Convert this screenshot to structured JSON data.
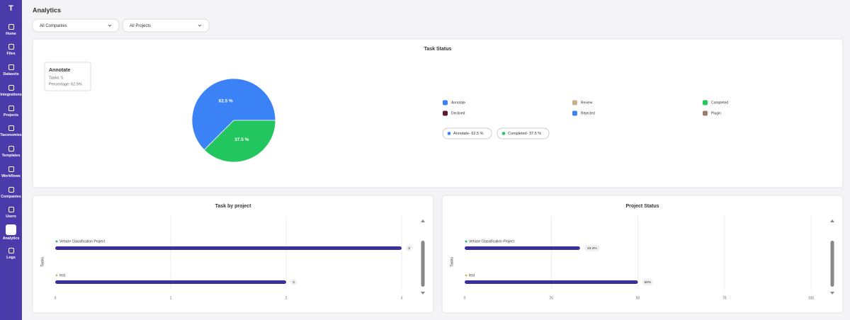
{
  "sidebar": {
    "logo": "T",
    "items": [
      "Home",
      "Files",
      "Datasets",
      "Integrations",
      "Projects",
      "Taxonomies",
      "Templates",
      "Workflows",
      "Companies",
      "Users",
      "Analytics",
      "Logs"
    ],
    "active": "Analytics"
  },
  "header": {
    "title": "Analytics"
  },
  "filters": [
    "All Companies",
    "All Projects"
  ],
  "chart_data": [
    {
      "type": "pie",
      "title": "Task Status",
      "categories": [
        "Annotate",
        "Completed"
      ],
      "values": [
        62.5,
        37.5
      ],
      "value_labels": [
        "62.5 %",
        "37.5 %"
      ],
      "colors": [
        "#3b82f6",
        "#22c55e"
      ],
      "tooltip": {
        "title": "Annotate",
        "tasks": "Tasks: 5",
        "percentage": "Percentage: 62.5%"
      },
      "legend": [
        {
          "name": "Annotate",
          "color": "#3b82f6"
        },
        {
          "name": "Review",
          "color": "#c8b08a"
        },
        {
          "name": "Completed",
          "color": "#22c55e"
        },
        {
          "name": "Declined",
          "color": "#5a1a30"
        },
        {
          "name": "Rejected",
          "color": "#3b82f6"
        },
        {
          "name": "Plugin",
          "color": "#a07e6e"
        }
      ],
      "chips": [
        "Annotate- 62.5 %",
        "Completed- 37.5 %"
      ]
    },
    {
      "type": "hbar",
      "title": "Task by project",
      "y_label": "Tasks",
      "categories": [
        "Vehicle Classification Project",
        "test"
      ],
      "category_colors": [
        "#22c55e",
        "#d4b86a"
      ],
      "values": [
        3,
        2
      ],
      "color": "#3b2f9e",
      "xlim": [
        0,
        3
      ],
      "xticks": [
        0,
        1,
        2,
        3
      ],
      "grid": true
    },
    {
      "type": "hbar",
      "title": "Project Status",
      "y_label": "Tasks",
      "categories": [
        "Vehicle Classification Project",
        "test"
      ],
      "category_colors": [
        "#22c55e",
        "#d4b86a"
      ],
      "values": [
        33.3,
        50
      ],
      "value_labels": [
        "33.3%",
        "50%"
      ],
      "color": "#3b2f9e",
      "xlim": [
        0,
        100
      ],
      "xticks": [
        0,
        25,
        50,
        75,
        100
      ],
      "grid": true
    }
  ]
}
